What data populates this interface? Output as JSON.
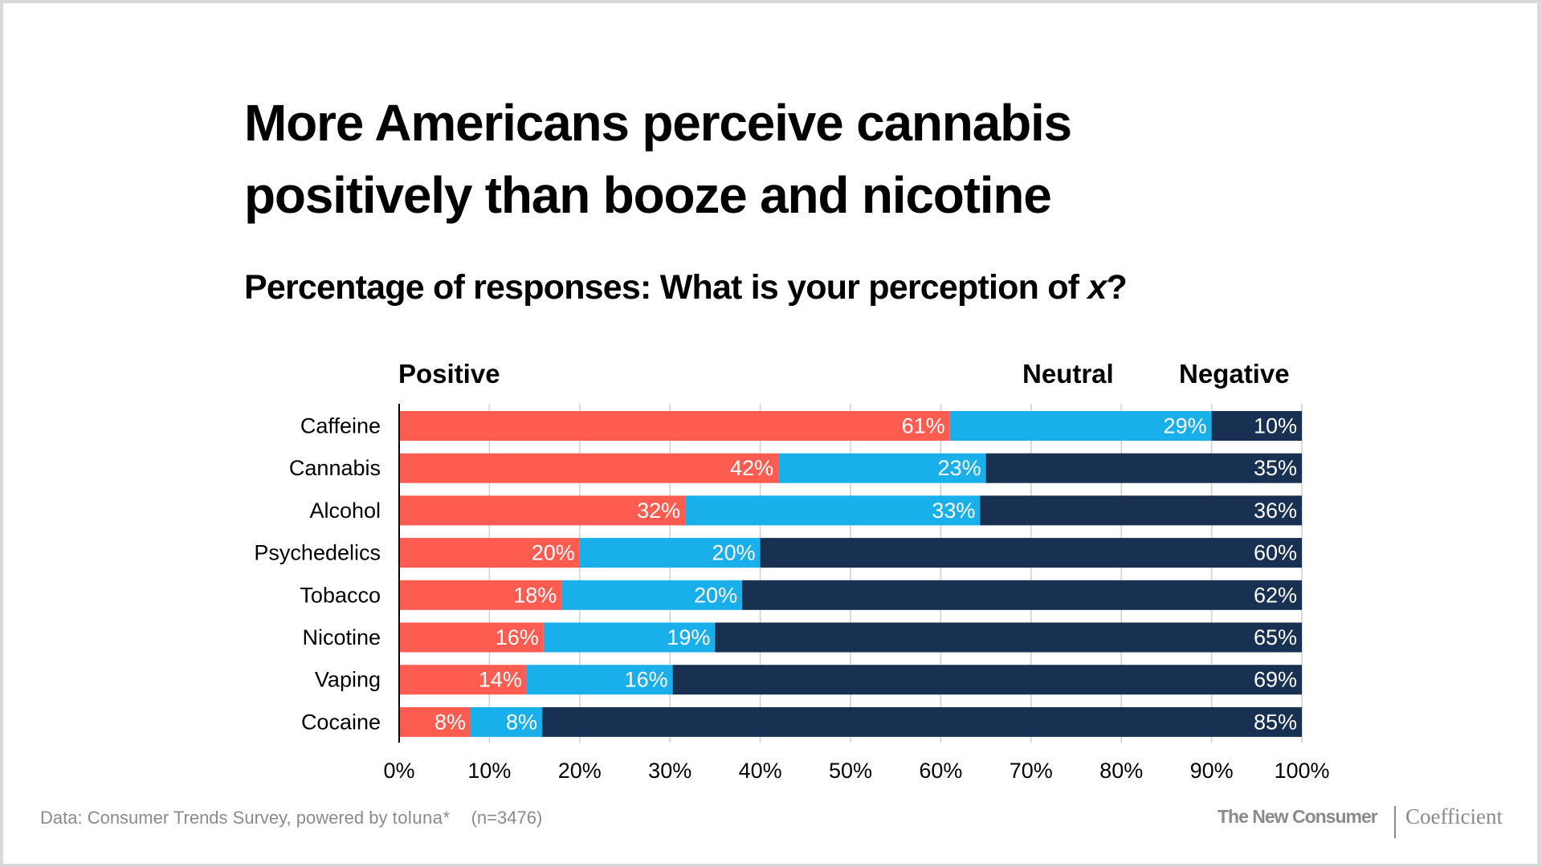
{
  "title_lines": [
    "More Americans perceive cannabis",
    "positively than booze and nicotine"
  ],
  "subtitle": {
    "prefix": "Percentage of responses: What is your perception of ",
    "variable": "x",
    "suffix": "?"
  },
  "colors": {
    "positive": "#fe5c50",
    "neutral": "#19afeb",
    "negative": "#183052",
    "gridline": "#d0d0d0",
    "axis": "#000000"
  },
  "chart_data": {
    "type": "bar",
    "orientation": "horizontal",
    "stacked": true,
    "title": "More Americans perceive cannabis positively than booze and nicotine",
    "subtitle": "Percentage of responses: What is your perception of x?",
    "categories": [
      "Caffeine",
      "Cannabis",
      "Alcohol",
      "Psychedelics",
      "Tobacco",
      "Nicotine",
      "Vaping",
      "Cocaine"
    ],
    "series": [
      {
        "name": "Positive",
        "values": [
          61,
          42,
          32,
          20,
          18,
          16,
          14,
          8
        ]
      },
      {
        "name": "Neutral",
        "values": [
          29,
          23,
          33,
          20,
          20,
          19,
          16,
          8
        ]
      },
      {
        "name": "Negative",
        "values": [
          10,
          35,
          36,
          60,
          62,
          65,
          69,
          85
        ]
      }
    ],
    "xlim": [
      0,
      100
    ],
    "x_ticks": [
      "0%",
      "10%",
      "20%",
      "30%",
      "40%",
      "50%",
      "60%",
      "70%",
      "80%",
      "90%",
      "100%"
    ],
    "xlabel": "",
    "ylabel": "",
    "grid": "vertical",
    "legend": "top",
    "value_suffix": "%"
  },
  "footer": {
    "source": "Data: Consumer Trends Survey, powered by ",
    "source_brand": "toluna*",
    "sample": "(n=3476)",
    "brand_left": "The New Consumer",
    "brand_right": "Coefficient"
  }
}
